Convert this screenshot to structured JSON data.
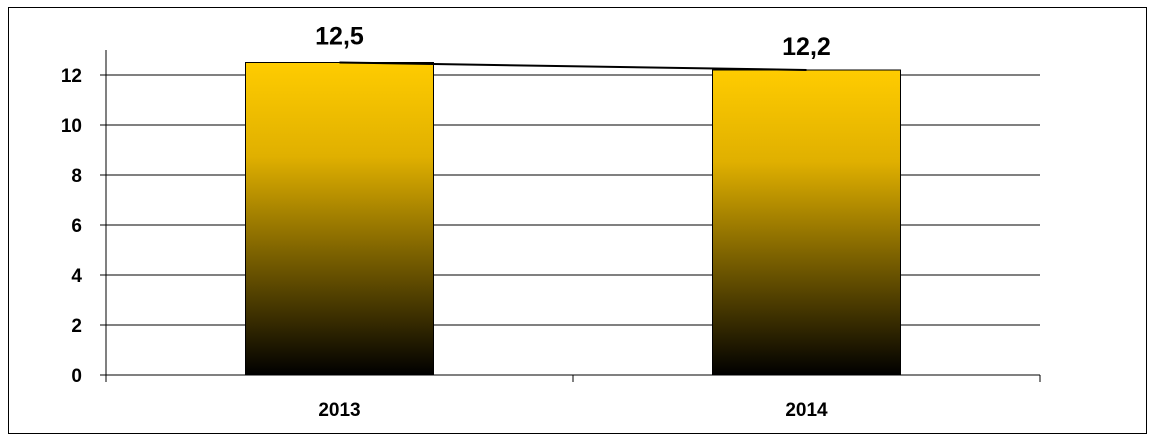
{
  "chart_data": {
    "type": "bar",
    "categories": [
      "2013",
      "2014"
    ],
    "values": [
      12.5,
      12.2
    ],
    "value_labels": [
      "12,5",
      "12,2"
    ],
    "yticks": [
      "0",
      "2",
      "4",
      "6",
      "8",
      "10",
      "12"
    ],
    "ylim": [
      0,
      13
    ],
    "ytick_step": 2,
    "grid": true,
    "legend": "none",
    "title": "",
    "xlabel": "",
    "ylabel": "",
    "overlay_line": true,
    "colors": {
      "bar_top": "#ffcc00",
      "bar_upper": "#e0b000",
      "bar_bottom": "#000000",
      "bar_edge": "#000000",
      "grid": "#000000",
      "axis": "#000000",
      "line": "#000000"
    }
  }
}
